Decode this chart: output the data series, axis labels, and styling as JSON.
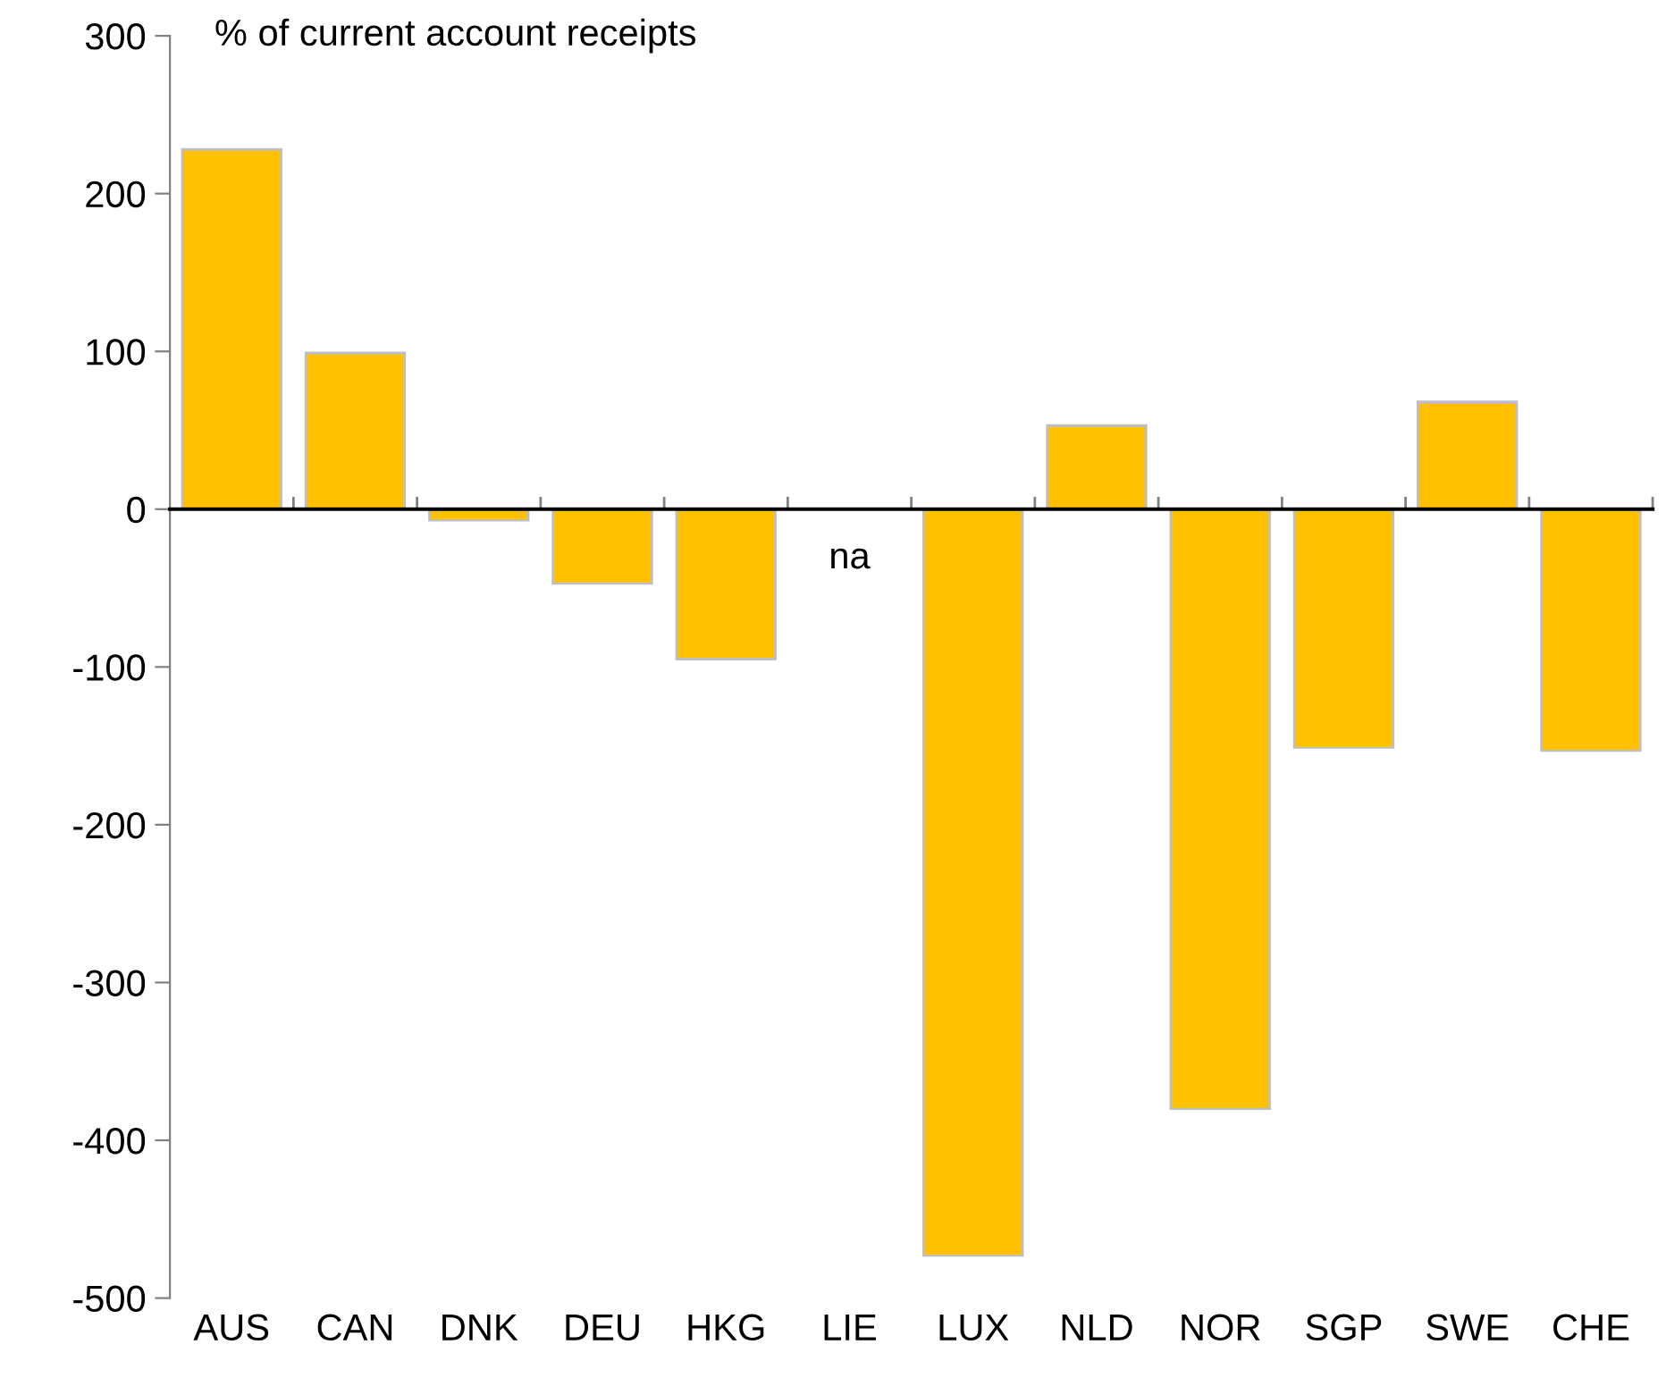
{
  "chart_data": {
    "type": "bar",
    "ylabel": "% of current account receipts",
    "categories": [
      "AUS",
      "CAN",
      "DNK",
      "DEU",
      "HKG",
      "LIE",
      "LUX",
      "NLD",
      "NOR",
      "SGP",
      "SWE",
      "CHE"
    ],
    "values": [
      228,
      99,
      -7,
      -47,
      -95,
      null,
      -473,
      53,
      -380,
      -151,
      68,
      -153
    ],
    "color": "#ffc000",
    "ylim": [
      -500,
      300
    ],
    "yticks": [
      -500,
      -400,
      -300,
      -200,
      -100,
      0,
      100,
      200,
      300
    ],
    "annotations": [
      "na"
    ],
    "legend": false
  }
}
